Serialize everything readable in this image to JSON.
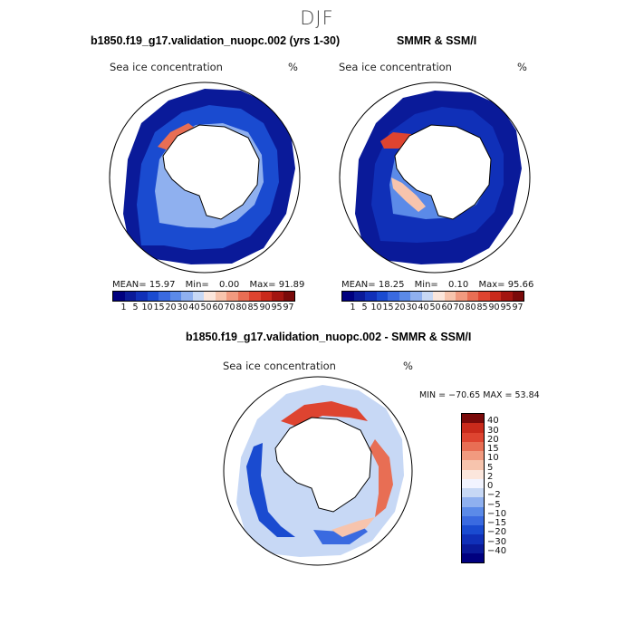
{
  "season": "DJF",
  "colors": {
    "conc_palette": [
      "#00007f",
      "#0a1a99",
      "#1030b8",
      "#1a4bd0",
      "#3a6ae0",
      "#5b8ae8",
      "#8fb0ef",
      "#c7d8f5",
      "#fbe6dc",
      "#f7c4ad",
      "#f19a7f",
      "#e86e54",
      "#de4430",
      "#c92a1b",
      "#a31510",
      "#7a0a0a"
    ],
    "diff_palette": [
      "#00007f",
      "#0a1a99",
      "#1030b8",
      "#1a4bd0",
      "#3a6ae0",
      "#5b8ae8",
      "#8fb0ef",
      "#c7d8f5",
      "#f2f4ff",
      "#fbe6dc",
      "#f7c4ad",
      "#f19a7f",
      "#e86e54",
      "#de4430",
      "#c92a1b",
      "#7a0a0a"
    ]
  },
  "panels": [
    {
      "title": "b1850.f19_g17.validation_nuopc.002 (yrs 1-30)",
      "variable": "Sea ice concentration",
      "unit": "%",
      "mean_label": "MEAN=",
      "mean": "15.97",
      "min_label": "Min=",
      "min": "0.00",
      "max_label": "Max=",
      "max": "91.89"
    },
    {
      "title": "SMMR & SSM/I",
      "variable": "Sea ice concentration",
      "unit": "%",
      "mean_label": "MEAN=",
      "mean": "18.25",
      "min_label": "Min=",
      "min": "0.10",
      "max_label": "Max=",
      "max": "95.66"
    }
  ],
  "conc_ticks": [
    "1",
    "5",
    "10",
    "15",
    "20",
    "30",
    "40",
    "50",
    "60",
    "70",
    "80",
    "85",
    "90",
    "95",
    "97"
  ],
  "diff": {
    "title": "b1850.f19_g17.validation_nuopc.002 - SMMR & SSM/I",
    "variable": "Sea ice concentration",
    "unit": "%",
    "minmax": "MIN = −70.65  MAX =  53.84",
    "ticks": [
      "40",
      "30",
      "20",
      "15",
      "10",
      "5",
      "2",
      "0",
      "−2",
      "−5",
      "−10",
      "−15",
      "−20",
      "−30",
      "−40"
    ]
  }
}
